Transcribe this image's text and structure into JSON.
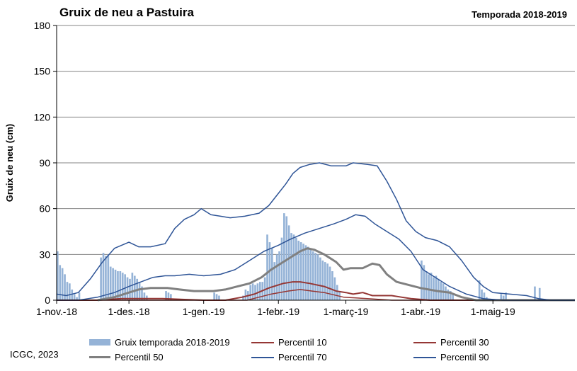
{
  "header": {
    "title": "Gruix de neu a Pastuira",
    "season": "Temporada 2018-2019"
  },
  "footer": {
    "credit": "ICGC, 2023"
  },
  "colors": {
    "bars": "#95b3d7",
    "p10": "#953735",
    "p30": "#953735",
    "p50": "#808080",
    "p70": "#2f5597",
    "p90": "#2f5597",
    "grid": "#868686"
  },
  "chart_data": {
    "type": "bar",
    "title": "Gruix de neu a Pastuira",
    "subtitle": "Temporada 2018-2019",
    "ylabel": "Gruix de neu (cm)",
    "xlabel": "",
    "ylim": [
      0,
      180
    ],
    "yticks": [
      0,
      30,
      60,
      90,
      120,
      150,
      180
    ],
    "grid": true,
    "legend_position": "bottom",
    "x_start": "2018-11-01",
    "x_end": "2019-06-04",
    "xticks": [
      {
        "date": "2018-11-01",
        "label": "1-nov.-18"
      },
      {
        "date": "2018-12-01",
        "label": "1-des.-18"
      },
      {
        "date": "2019-01-01",
        "label": "1-gen.-19"
      },
      {
        "date": "2019-02-01",
        "label": "1-febr.-19"
      },
      {
        "date": "2019-03-01",
        "label": "1-març-19"
      },
      {
        "date": "2019-04-01",
        "label": "1-abr.-19"
      },
      {
        "date": "2019-05-01",
        "label": "1-maig-19"
      }
    ],
    "bars": {
      "name": "Gruix temporada 2018-2019",
      "points": [
        [
          "2018-11-01",
          32
        ],
        [
          "2018-11-02",
          23
        ],
        [
          "2018-11-03",
          21
        ],
        [
          "2018-11-04",
          17
        ],
        [
          "2018-11-05",
          12
        ],
        [
          "2018-11-06",
          11
        ],
        [
          "2018-11-07",
          7
        ],
        [
          "2018-11-08",
          4
        ],
        [
          "2018-11-09",
          2
        ],
        [
          "2018-11-10",
          5
        ],
        [
          "2018-11-19",
          28
        ],
        [
          "2018-11-20",
          31
        ],
        [
          "2018-11-21",
          29
        ],
        [
          "2018-11-22",
          30
        ],
        [
          "2018-11-23",
          22
        ],
        [
          "2018-11-24",
          21
        ],
        [
          "2018-11-25",
          20
        ],
        [
          "2018-11-26",
          19
        ],
        [
          "2018-11-27",
          19
        ],
        [
          "2018-11-28",
          18
        ],
        [
          "2018-11-29",
          17
        ],
        [
          "2018-11-30",
          15
        ],
        [
          "2018-12-01",
          14
        ],
        [
          "2018-12-02",
          18
        ],
        [
          "2018-12-03",
          16
        ],
        [
          "2018-12-04",
          14
        ],
        [
          "2018-12-05",
          12
        ],
        [
          "2018-12-06",
          9
        ],
        [
          "2018-12-07",
          5
        ],
        [
          "2018-12-08",
          3
        ],
        [
          "2018-12-16",
          6
        ],
        [
          "2018-12-17",
          5
        ],
        [
          "2018-12-18",
          4
        ],
        [
          "2019-01-05",
          5
        ],
        [
          "2019-01-06",
          4
        ],
        [
          "2019-01-07",
          3
        ],
        [
          "2019-01-17",
          3
        ],
        [
          "2019-01-18",
          7
        ],
        [
          "2019-01-19",
          6
        ],
        [
          "2019-01-20",
          10
        ],
        [
          "2019-01-21",
          11
        ],
        [
          "2019-01-22",
          10
        ],
        [
          "2019-01-23",
          11
        ],
        [
          "2019-01-24",
          12
        ],
        [
          "2019-01-25",
          12
        ],
        [
          "2019-01-26",
          15
        ],
        [
          "2019-01-27",
          43
        ],
        [
          "2019-01-28",
          38
        ],
        [
          "2019-01-29",
          34
        ],
        [
          "2019-01-30",
          25
        ],
        [
          "2019-01-31",
          30
        ],
        [
          "2019-02-01",
          32
        ],
        [
          "2019-02-02",
          41
        ],
        [
          "2019-02-03",
          57
        ],
        [
          "2019-02-04",
          55
        ],
        [
          "2019-02-05",
          49
        ],
        [
          "2019-02-06",
          44
        ],
        [
          "2019-02-07",
          43
        ],
        [
          "2019-02-08",
          41
        ],
        [
          "2019-02-09",
          39
        ],
        [
          "2019-02-10",
          38
        ],
        [
          "2019-02-11",
          37
        ],
        [
          "2019-02-12",
          36
        ],
        [
          "2019-02-13",
          35
        ],
        [
          "2019-02-14",
          33
        ],
        [
          "2019-02-15",
          32
        ],
        [
          "2019-02-16",
          31
        ],
        [
          "2019-02-17",
          30
        ],
        [
          "2019-02-18",
          28
        ],
        [
          "2019-02-19",
          26
        ],
        [
          "2019-02-20",
          25
        ],
        [
          "2019-02-21",
          24
        ],
        [
          "2019-02-22",
          22
        ],
        [
          "2019-02-23",
          19
        ],
        [
          "2019-02-24",
          15
        ],
        [
          "2019-02-25",
          10
        ],
        [
          "2019-02-26",
          6
        ],
        [
          "2019-04-01",
          26
        ],
        [
          "2019-04-02",
          23
        ],
        [
          "2019-04-03",
          19
        ],
        [
          "2019-04-04",
          17
        ],
        [
          "2019-04-05",
          18
        ],
        [
          "2019-04-06",
          15
        ],
        [
          "2019-04-07",
          16
        ],
        [
          "2019-04-08",
          14
        ],
        [
          "2019-04-09",
          12
        ],
        [
          "2019-04-10",
          11
        ],
        [
          "2019-04-11",
          9
        ],
        [
          "2019-04-12",
          7
        ],
        [
          "2019-04-13",
          6
        ],
        [
          "2019-04-14",
          4
        ],
        [
          "2019-04-25",
          13
        ],
        [
          "2019-04-26",
          7
        ],
        [
          "2019-04-27",
          5
        ],
        [
          "2019-04-28",
          2
        ],
        [
          "2019-05-04",
          4
        ],
        [
          "2019-05-05",
          3
        ],
        [
          "2019-05-06",
          5
        ],
        [
          "2019-05-18",
          9
        ],
        [
          "2019-05-20",
          8
        ]
      ]
    },
    "series": [
      {
        "name": "Percentil 10",
        "key": "p10",
        "width": 1.5,
        "points": [
          [
            "2018-11-01",
            0
          ],
          [
            "2019-01-19",
            0
          ],
          [
            "2019-01-24",
            2
          ],
          [
            "2019-01-29",
            4
          ],
          [
            "2019-02-05",
            6
          ],
          [
            "2019-02-10",
            7
          ],
          [
            "2019-02-15",
            6
          ],
          [
            "2019-02-20",
            5
          ],
          [
            "2019-02-28",
            2
          ],
          [
            "2019-03-10",
            1
          ],
          [
            "2019-03-20",
            0
          ],
          [
            "2019-06-04",
            0
          ]
        ]
      },
      {
        "name": "Percentil 30",
        "key": "p30",
        "width": 2,
        "points": [
          [
            "2018-11-01",
            0
          ],
          [
            "2018-11-18",
            0
          ],
          [
            "2018-11-28",
            1
          ],
          [
            "2018-12-15",
            1
          ],
          [
            "2019-01-01",
            0
          ],
          [
            "2019-01-10",
            0
          ],
          [
            "2019-01-17",
            2
          ],
          [
            "2019-01-22",
            4
          ],
          [
            "2019-01-28",
            8
          ],
          [
            "2019-02-03",
            11
          ],
          [
            "2019-02-07",
            12
          ],
          [
            "2019-02-10",
            12
          ],
          [
            "2019-02-14",
            11
          ],
          [
            "2019-02-20",
            9
          ],
          [
            "2019-02-25",
            6
          ],
          [
            "2019-03-01",
            5
          ],
          [
            "2019-03-04",
            4
          ],
          [
            "2019-03-08",
            5
          ],
          [
            "2019-03-12",
            3
          ],
          [
            "2019-03-20",
            3
          ],
          [
            "2019-03-24",
            2
          ],
          [
            "2019-03-28",
            1
          ],
          [
            "2019-04-05",
            0
          ],
          [
            "2019-06-04",
            0
          ]
        ]
      },
      {
        "name": "Percentil 50",
        "key": "p50",
        "width": 3,
        "points": [
          [
            "2018-11-18",
            0
          ],
          [
            "2018-11-25",
            2
          ],
          [
            "2018-12-01",
            5
          ],
          [
            "2018-12-05",
            7
          ],
          [
            "2018-12-10",
            8
          ],
          [
            "2018-12-17",
            8
          ],
          [
            "2018-12-22",
            7
          ],
          [
            "2018-12-28",
            6
          ],
          [
            "2019-01-05",
            6
          ],
          [
            "2019-01-10",
            7
          ],
          [
            "2019-01-15",
            9
          ],
          [
            "2019-01-20",
            11
          ],
          [
            "2019-01-25",
            15
          ],
          [
            "2019-01-29",
            20
          ],
          [
            "2019-02-03",
            25
          ],
          [
            "2019-02-07",
            29
          ],
          [
            "2019-02-10",
            32
          ],
          [
            "2019-02-13",
            34
          ],
          [
            "2019-02-16",
            33
          ],
          [
            "2019-02-20",
            30
          ],
          [
            "2019-02-25",
            25
          ],
          [
            "2019-02-28",
            20
          ],
          [
            "2019-03-03",
            21
          ],
          [
            "2019-03-08",
            21
          ],
          [
            "2019-03-12",
            24
          ],
          [
            "2019-03-15",
            23
          ],
          [
            "2019-03-18",
            17
          ],
          [
            "2019-03-22",
            12
          ],
          [
            "2019-03-27",
            10
          ],
          [
            "2019-04-01",
            8
          ],
          [
            "2019-04-08",
            6
          ],
          [
            "2019-04-13",
            5
          ],
          [
            "2019-04-18",
            2
          ],
          [
            "2019-04-24",
            0
          ],
          [
            "2019-06-04",
            0
          ]
        ]
      },
      {
        "name": "Percentil 70",
        "key": "p70",
        "width": 1.5,
        "points": [
          [
            "2018-11-01",
            0
          ],
          [
            "2018-11-10",
            0
          ],
          [
            "2018-11-18",
            2
          ],
          [
            "2018-11-25",
            5
          ],
          [
            "2018-12-01",
            9
          ],
          [
            "2018-12-06",
            12
          ],
          [
            "2018-12-11",
            15
          ],
          [
            "2018-12-16",
            16
          ],
          [
            "2018-12-20",
            16
          ],
          [
            "2018-12-26",
            17
          ],
          [
            "2019-01-01",
            16
          ],
          [
            "2019-01-08",
            17
          ],
          [
            "2019-01-14",
            20
          ],
          [
            "2019-01-20",
            26
          ],
          [
            "2019-01-26",
            32
          ],
          [
            "2019-02-01",
            36
          ],
          [
            "2019-02-06",
            40
          ],
          [
            "2019-02-12",
            44
          ],
          [
            "2019-02-18",
            47
          ],
          [
            "2019-02-24",
            50
          ],
          [
            "2019-03-01",
            53
          ],
          [
            "2019-03-05",
            56
          ],
          [
            "2019-03-09",
            55
          ],
          [
            "2019-03-13",
            50
          ],
          [
            "2019-03-18",
            45
          ],
          [
            "2019-03-23",
            40
          ],
          [
            "2019-03-28",
            32
          ],
          [
            "2019-04-02",
            20
          ],
          [
            "2019-04-08",
            14
          ],
          [
            "2019-04-13",
            9
          ],
          [
            "2019-04-20",
            4
          ],
          [
            "2019-04-27",
            1
          ],
          [
            "2019-05-05",
            0
          ],
          [
            "2019-06-04",
            0
          ]
        ]
      },
      {
        "name": "Percentil 90",
        "key": "p90",
        "width": 1.5,
        "points": [
          [
            "2018-11-01",
            4
          ],
          [
            "2018-11-05",
            3
          ],
          [
            "2018-11-10",
            5
          ],
          [
            "2018-11-15",
            14
          ],
          [
            "2018-11-20",
            25
          ],
          [
            "2018-11-25",
            34
          ],
          [
            "2018-12-01",
            38
          ],
          [
            "2018-12-05",
            35
          ],
          [
            "2018-12-10",
            35
          ],
          [
            "2018-12-16",
            37
          ],
          [
            "2018-12-20",
            47
          ],
          [
            "2018-12-24",
            53
          ],
          [
            "2018-12-28",
            56
          ],
          [
            "2018-12-31",
            60
          ],
          [
            "2019-01-04",
            56
          ],
          [
            "2019-01-08",
            55
          ],
          [
            "2019-01-12",
            54
          ],
          [
            "2019-01-18",
            55
          ],
          [
            "2019-01-24",
            57
          ],
          [
            "2019-01-28",
            62
          ],
          [
            "2019-02-01",
            70
          ],
          [
            "2019-02-04",
            76
          ],
          [
            "2019-02-07",
            83
          ],
          [
            "2019-02-10",
            87
          ],
          [
            "2019-02-14",
            89
          ],
          [
            "2019-02-18",
            90
          ],
          [
            "2019-02-23",
            88
          ],
          [
            "2019-03-01",
            88
          ],
          [
            "2019-03-04",
            90
          ],
          [
            "2019-03-10",
            89
          ],
          [
            "2019-03-14",
            88
          ],
          [
            "2019-03-18",
            78
          ],
          [
            "2019-03-22",
            66
          ],
          [
            "2019-03-26",
            52
          ],
          [
            "2019-03-30",
            45
          ],
          [
            "2019-04-03",
            41
          ],
          [
            "2019-04-08",
            39
          ],
          [
            "2019-04-13",
            35
          ],
          [
            "2019-04-18",
            26
          ],
          [
            "2019-04-23",
            15
          ],
          [
            "2019-04-27",
            9
          ],
          [
            "2019-05-01",
            5
          ],
          [
            "2019-05-08",
            4
          ],
          [
            "2019-05-15",
            3
          ],
          [
            "2019-05-20",
            1
          ],
          [
            "2019-05-25",
            0
          ],
          [
            "2019-06-04",
            0
          ]
        ]
      }
    ]
  },
  "legend": {
    "bars": "Gruix temporada 2018-2019",
    "p10": "Percentil 10",
    "p30": "Percentil 30",
    "p50": "Percentil 50",
    "p70": "Percentil 70",
    "p90": "Percentil 90"
  }
}
